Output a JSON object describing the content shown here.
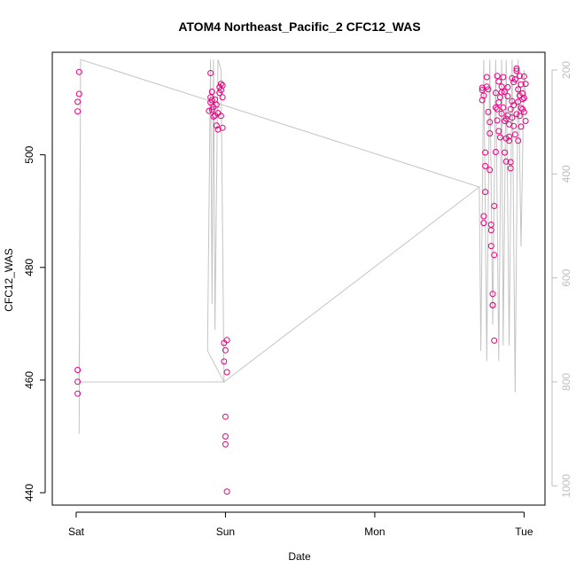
{
  "chart_data": {
    "type": "scatter",
    "title": "ATOM4 Northeast_Pacific_2 CFC12_WAS",
    "xlabel": "Date",
    "ylabel": "CFC12_WAS",
    "x_ticks": [
      "Sat",
      "Sun",
      "Mon",
      "Tue"
    ],
    "x_tick_values": [
      0,
      1,
      2,
      3
    ],
    "xlim": [
      -0.16,
      3.14
    ],
    "ylim": [
      437.8,
      518.2
    ],
    "y_ticks": [
      440,
      460,
      480,
      500
    ],
    "right_axis": {
      "ylim": [
        1037,
        166
      ],
      "ticks": [
        200,
        400,
        600,
        800,
        1000
      ]
    },
    "grid": false,
    "legend": "none",
    "colors": {
      "point": "#e6007e",
      "track": "#c4c4c4",
      "right_axis": "#bdbdbd"
    },
    "series": [
      {
        "values": [
          [
            0.01,
            457.6
          ],
          [
            0.01,
            459.7
          ],
          [
            0.01,
            461.8
          ],
          [
            0.01,
            507.7
          ],
          [
            0.01,
            509.4
          ],
          [
            0.02,
            510.8
          ],
          [
            0.02,
            514.7
          ],
          [
            0.89,
            507.8
          ],
          [
            0.9,
            514.5
          ],
          [
            0.9,
            509.3
          ],
          [
            0.9,
            510.2
          ],
          [
            0.91,
            511.2
          ],
          [
            0.91,
            509.7
          ],
          [
            0.91,
            508.0
          ],
          [
            0.92,
            506.8
          ],
          [
            0.92,
            508.5
          ],
          [
            0.93,
            509.8
          ],
          [
            0.93,
            507.0
          ],
          [
            0.94,
            505.2
          ],
          [
            0.94,
            508.9
          ],
          [
            0.95,
            504.5
          ],
          [
            0.95,
            507.4
          ],
          [
            0.96,
            512.0
          ],
          [
            0.96,
            511.0
          ],
          [
            0.97,
            506.9
          ],
          [
            0.97,
            511.5
          ],
          [
            0.97,
            512.6
          ],
          [
            0.98,
            512.3
          ],
          [
            0.98,
            504.8
          ],
          [
            0.98,
            510.2
          ],
          [
            0.99,
            466.6
          ],
          [
            0.99,
            463.3
          ],
          [
            1.0,
            453.5
          ],
          [
            1.0,
            450.0
          ],
          [
            1.0,
            448.6
          ],
          [
            1.0,
            465.3
          ],
          [
            1.01,
            467.1
          ],
          [
            1.01,
            461.4
          ],
          [
            1.01,
            440.2
          ],
          [
            2.72,
            511.5
          ],
          [
            2.72,
            511.9
          ],
          [
            2.72,
            509.7
          ],
          [
            2.73,
            510.5
          ],
          [
            2.73,
            489.1
          ],
          [
            2.73,
            487.9
          ],
          [
            2.74,
            498.0
          ],
          [
            2.74,
            500.4
          ],
          [
            2.74,
            493.4
          ],
          [
            2.75,
            512.1
          ],
          [
            2.75,
            513.8
          ],
          [
            2.76,
            511.6
          ],
          [
            2.76,
            507.6
          ],
          [
            2.77,
            503.8
          ],
          [
            2.77,
            505.8
          ],
          [
            2.77,
            497.3
          ],
          [
            2.78,
            487.6
          ],
          [
            2.78,
            486.6
          ],
          [
            2.78,
            483.8
          ],
          [
            2.79,
            475.3
          ],
          [
            2.79,
            473.3
          ],
          [
            2.79,
            473.3
          ],
          [
            2.8,
            482.2
          ],
          [
            2.8,
            490.9
          ],
          [
            2.8,
            467.0
          ],
          [
            2.81,
            500.5
          ],
          [
            2.81,
            508.4
          ],
          [
            2.81,
            511.0
          ],
          [
            2.82,
            508.1
          ],
          [
            2.82,
            506.1
          ],
          [
            2.82,
            514.0
          ],
          [
            2.83,
            513.0
          ],
          [
            2.83,
            509.3
          ],
          [
            2.83,
            504.2
          ],
          [
            2.84,
            503.1
          ],
          [
            2.84,
            510.2
          ],
          [
            2.85,
            512.1
          ],
          [
            2.85,
            511.1
          ],
          [
            2.85,
            507.3
          ],
          [
            2.86,
            513.8
          ],
          [
            2.86,
            508.4
          ],
          [
            2.87,
            506.0
          ],
          [
            2.87,
            511.2
          ],
          [
            2.87,
            500.4
          ],
          [
            2.88,
            502.9
          ],
          [
            2.88,
            498.8
          ],
          [
            2.88,
            506.4
          ],
          [
            2.89,
            510.4
          ],
          [
            2.89,
            512.0
          ],
          [
            2.89,
            507.0
          ],
          [
            2.9,
            505.4
          ],
          [
            2.9,
            503.2
          ],
          [
            2.9,
            502.5
          ],
          [
            2.91,
            498.7
          ],
          [
            2.91,
            497.6
          ],
          [
            2.91,
            508.1
          ],
          [
            2.92,
            513.6
          ],
          [
            2.92,
            509.5
          ],
          [
            2.92,
            506.6
          ],
          [
            2.93,
            512.9
          ],
          [
            2.93,
            508.8
          ],
          [
            2.93,
            505.1
          ],
          [
            2.94,
            503.6
          ],
          [
            2.94,
            513.4
          ],
          [
            2.95,
            515.3
          ],
          [
            2.95,
            514.9
          ],
          [
            2.95,
            507.2
          ],
          [
            2.96,
            502.5
          ],
          [
            2.96,
            509.4
          ],
          [
            2.96,
            511.6
          ],
          [
            2.97,
            514.0
          ],
          [
            2.97,
            510.5
          ],
          [
            2.97,
            506.9
          ],
          [
            2.98,
            508.3
          ],
          [
            2.98,
            505.0
          ],
          [
            2.98,
            512.5
          ],
          [
            2.99,
            510.9
          ],
          [
            2.99,
            509.9
          ],
          [
            2.99,
            508.1
          ],
          [
            3.0,
            513.9
          ],
          [
            3.0,
            510.1
          ],
          [
            3.0,
            507.6
          ],
          [
            3.01,
            506.0
          ],
          [
            3.01,
            512.6
          ]
        ]
      }
    ]
  }
}
